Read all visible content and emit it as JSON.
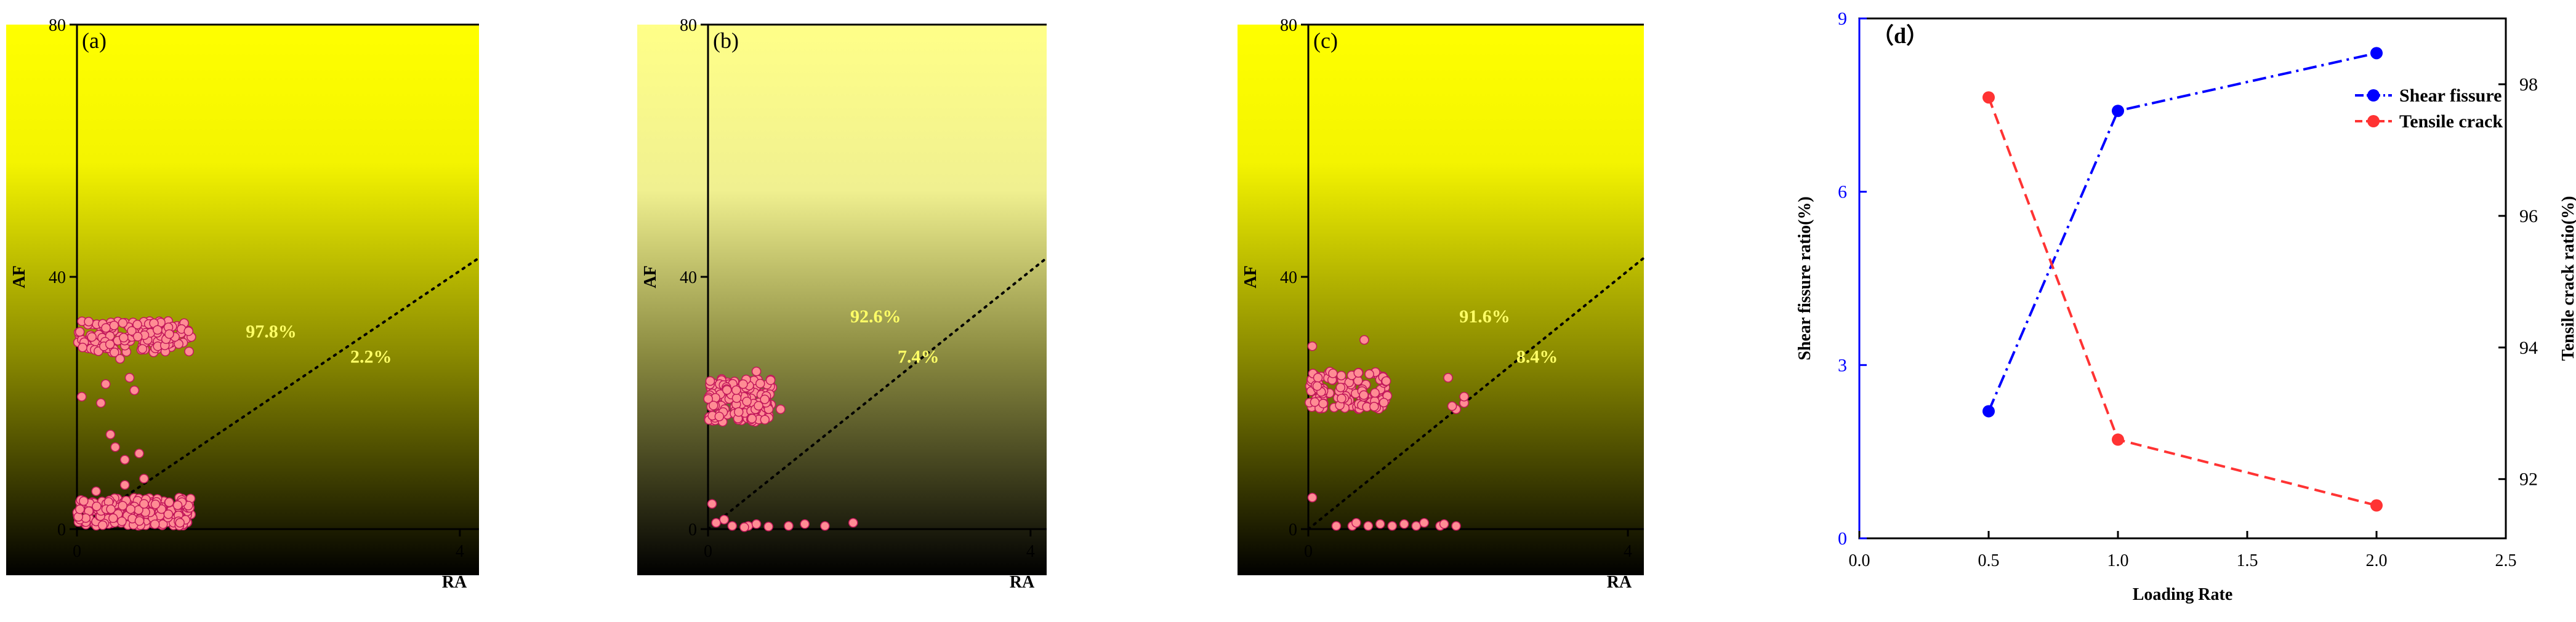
{
  "chart_data": [
    {
      "type": "scatter",
      "panel_label": "(a)",
      "xlabel": "RA",
      "ylabel": "AF",
      "xlim": [
        0,
        4.2
      ],
      "ylim": [
        0,
        80
      ],
      "xticks": [
        "0",
        "4"
      ],
      "yticks": [
        "0",
        "40",
        "80"
      ],
      "background": "yellow-to-black vertical gradient",
      "divider_line": {
        "x": [
          0,
          4.2
        ],
        "y": [
          0,
          43
        ]
      },
      "annotations": [
        "97.8%",
        "2.2%"
      ],
      "point_color": "#ff8c94",
      "clusters": [
        {
          "x_range": [
            0.0,
            1.2
          ],
          "y_range": [
            28,
            33
          ],
          "approx_count": 160
        },
        {
          "x_range": [
            0.0,
            1.2
          ],
          "y_range": [
            0.5,
            5
          ],
          "approx_count": 220
        }
      ],
      "points": [
        [
          0.05,
          21
        ],
        [
          0.25,
          20
        ],
        [
          0.3,
          23
        ],
        [
          0.45,
          27
        ],
        [
          0.55,
          24
        ],
        [
          0.6,
          22
        ],
        [
          0.35,
          15
        ],
        [
          0.5,
          11
        ],
        [
          0.65,
          12
        ],
        [
          0.7,
          8
        ],
        [
          0.5,
          7
        ],
        [
          0.2,
          6
        ],
        [
          0.4,
          13
        ]
      ]
    },
    {
      "type": "scatter",
      "panel_label": "(b)",
      "xlabel": "RA",
      "ylabel": "AF",
      "xlim": [
        0,
        4.2
      ],
      "ylim": [
        0,
        80
      ],
      "xticks": [
        "0",
        "4"
      ],
      "yticks": [
        "0",
        "40",
        "80"
      ],
      "background": "light-yellow-to-black vertical gradient",
      "divider_line": {
        "x": [
          0,
          4.2
        ],
        "y": [
          0,
          43
        ]
      },
      "annotations": [
        "92.6%",
        "7.4%"
      ],
      "point_color": "#ff8c94",
      "clusters": [
        {
          "x_range": [
            0.0,
            0.8
          ],
          "y_range": [
            17,
            24
          ],
          "approx_count": 170
        }
      ],
      "points": [
        [
          0.6,
          25
        ],
        [
          0.9,
          19
        ],
        [
          0.05,
          4
        ],
        [
          0.1,
          1
        ],
        [
          0.2,
          1.5
        ],
        [
          0.3,
          0.5
        ],
        [
          0.5,
          0.5
        ],
        [
          0.6,
          0.8
        ],
        [
          0.75,
          0.4
        ],
        [
          1.0,
          0.5
        ],
        [
          1.2,
          0.8
        ],
        [
          1.45,
          0.5
        ],
        [
          1.8,
          1
        ],
        [
          0.45,
          0.3
        ]
      ]
    },
    {
      "type": "scatter",
      "panel_label": "(c)",
      "xlabel": "RA",
      "ylabel": "AF",
      "xlim": [
        0,
        4.2
      ],
      "ylim": [
        0,
        80
      ],
      "xticks": [
        "0",
        "4"
      ],
      "yticks": [
        "0",
        "40",
        "80"
      ],
      "background": "yellow-to-black vertical gradient",
      "divider_line": {
        "x": [
          0,
          4.2
        ],
        "y": [
          0,
          43
        ]
      },
      "annotations": [
        "91.6%",
        "8.4%"
      ],
      "point_color": "#ff8c94",
      "clusters": [
        {
          "x_range": [
            0.0,
            1.0
          ],
          "y_range": [
            19,
            25
          ],
          "approx_count": 130
        }
      ],
      "points": [
        [
          0.05,
          29
        ],
        [
          0.7,
          30
        ],
        [
          0.05,
          5
        ],
        [
          0.35,
          0.5
        ],
        [
          0.55,
          0.5
        ],
        [
          0.6,
          1
        ],
        [
          0.75,
          0.5
        ],
        [
          0.9,
          0.8
        ],
        [
          1.05,
          0.5
        ],
        [
          1.2,
          0.8
        ],
        [
          1.35,
          0.5
        ],
        [
          1.45,
          1
        ],
        [
          1.65,
          0.5
        ],
        [
          1.7,
          0.8
        ],
        [
          1.85,
          0.5
        ],
        [
          1.85,
          19
        ],
        [
          1.95,
          20
        ],
        [
          1.95,
          21
        ],
        [
          1.75,
          24
        ],
        [
          1.8,
          19.5
        ]
      ]
    },
    {
      "type": "line",
      "panel_label": "（d）",
      "xlabel": "Loading Rate",
      "ylabel_left": "Shear fissure ratio(%)",
      "ylabel_right": "Tensile crack ratio(%)",
      "xlim": [
        0.0,
        2.5
      ],
      "xticks": [
        "0.0",
        "0.5",
        "1.0",
        "1.5",
        "2.0",
        "2.5"
      ],
      "ylim_left": [
        0,
        9
      ],
      "yticks_left": [
        "0",
        "3",
        "6",
        "9"
      ],
      "ylim_right": [
        91.1,
        99.0
      ],
      "yticks_right": [
        "92",
        "94",
        "96",
        "98"
      ],
      "legend_position": "top-right",
      "series": [
        {
          "name": "Shear fissure",
          "axis": "left",
          "color": "#0000ff",
          "style": "dash-dot",
          "x": [
            0.5,
            1.0,
            2.0
          ],
          "y": [
            2.2,
            7.4,
            8.4
          ]
        },
        {
          "name": "Tensile crack",
          "axis": "right",
          "color": "#ff3333",
          "style": "dashed",
          "x": [
            0.5,
            1.0,
            2.0
          ],
          "y": [
            97.8,
            92.6,
            91.6
          ]
        }
      ]
    }
  ]
}
